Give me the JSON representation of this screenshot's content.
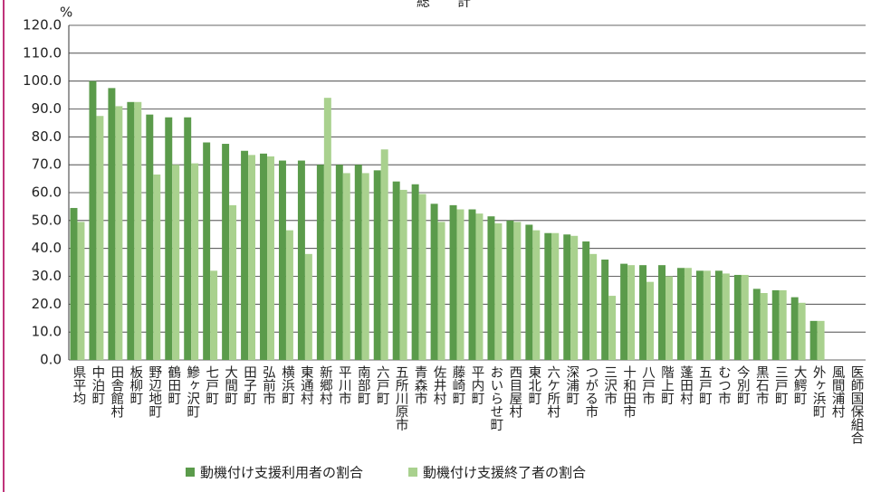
{
  "chart_data": {
    "type": "bar",
    "title": "総　　計",
    "y_unit": "%",
    "categories": [
      "県平均",
      "中泊町",
      "田舎館村",
      "板柳町",
      "野辺地町",
      "鶴田町",
      "鰺ヶ沢町",
      "七戸町",
      "大間町",
      "田子町",
      "弘前市",
      "横浜町",
      "東通村",
      "新郷村",
      "平川市",
      "南部町",
      "六戸町",
      "五所川原市",
      "青森市",
      "佐井村",
      "藤崎町",
      "平内町",
      "おいらせ町",
      "西目屋村",
      "東北町",
      "六ケ所村",
      "深浦町",
      "つがる市",
      "三沢市",
      "十和田市",
      "八戸市",
      "階上町",
      "蓬田村",
      "五戸町",
      "むつ市",
      "今別町",
      "黒石市",
      "三戸町",
      "大鰐町",
      "外ヶ浜町",
      "風間浦村",
      "医師国保組合"
    ],
    "series": [
      {
        "name": "動機付け支援利用者の割合",
        "color": "#5b9b4b",
        "values": [
          54.5,
          100,
          97.5,
          92.5,
          88,
          87,
          87,
          78,
          77.5,
          75,
          74,
          71.5,
          71.5,
          70,
          70,
          70,
          68,
          64,
          63,
          56,
          55.5,
          54,
          51.5,
          50,
          48.5,
          45.5,
          45,
          42.5,
          36,
          34.5,
          34,
          34,
          33,
          32,
          32,
          30.5,
          25.5,
          25,
          22.5,
          14,
          null,
          null
        ]
      },
      {
        "name": "動機付け支援終了者の割合",
        "color": "#a9d18e",
        "values": [
          49.5,
          87.5,
          91,
          92.5,
          66.5,
          70,
          70.5,
          32,
          55.5,
          73.5,
          73,
          46.5,
          38,
          94,
          67,
          67,
          75.5,
          61,
          59.5,
          49.5,
          54,
          52.5,
          49,
          49.5,
          46.5,
          45.5,
          44.5,
          38,
          23,
          34,
          28,
          30,
          33,
          32,
          31,
          30.5,
          24,
          25,
          20.5,
          14,
          null,
          null
        ]
      }
    ],
    "ylim": [
      0,
      120
    ],
    "yticks": [
      {
        "value": 0,
        "label": "0.0"
      },
      {
        "value": 10,
        "label": "10.0"
      },
      {
        "value": 20,
        "label": "20.0"
      },
      {
        "value": 30,
        "label": "30.0"
      },
      {
        "value": 40,
        "label": "40.0"
      },
      {
        "value": 50,
        "label": "50.0"
      },
      {
        "value": 60,
        "label": "60.0"
      },
      {
        "value": 70,
        "label": "70.0"
      },
      {
        "value": 80,
        "label": "80.0"
      },
      {
        "value": 90,
        "label": "90.0"
      },
      {
        "value": 100,
        "label": "100.0"
      },
      {
        "value": 110,
        "label": "110.0"
      },
      {
        "value": 120,
        "label": "120.0"
      }
    ],
    "grid": true
  }
}
